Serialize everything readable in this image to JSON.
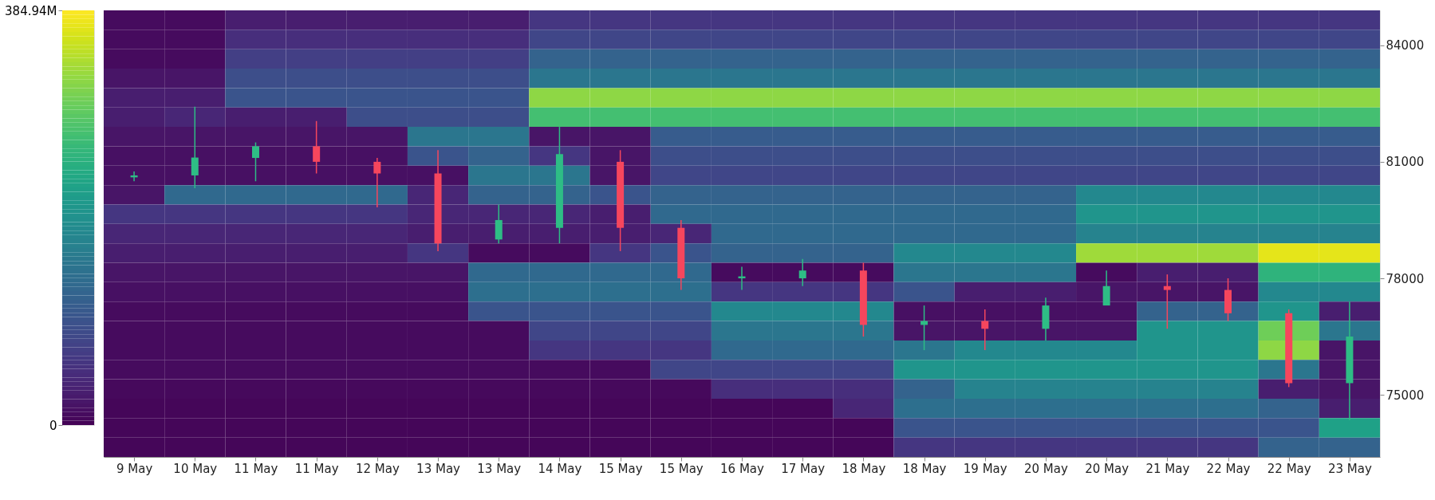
{
  "chart_data": {
    "type": "heatmap",
    "categories": [
      "9 May",
      "10 May",
      "11 May",
      "11 May",
      "12 May",
      "13 May",
      "13 May",
      "14 May",
      "15 May",
      "15 May",
      "16 May",
      "17 May",
      "18 May",
      "18 May",
      "19 May",
      "20 May",
      "20 May",
      "21 May",
      "22 May",
      "22 May",
      "23 May"
    ],
    "series": [
      {
        "type": "candlestick",
        "ohlc": [
          [
            80600,
            80750,
            80500,
            80650
          ],
          [
            80650,
            82420,
            80320,
            81110
          ],
          [
            81100,
            81500,
            80500,
            81400
          ],
          [
            81400,
            82050,
            80700,
            81000
          ],
          [
            81000,
            81100,
            79830,
            80700
          ],
          [
            80700,
            81300,
            78700,
            78900
          ],
          [
            79000,
            79900,
            78900,
            79500
          ],
          [
            79300,
            81900,
            78900,
            81200
          ],
          [
            81000,
            81300,
            78700,
            79300
          ],
          [
            79300,
            79500,
            77700,
            78000
          ],
          [
            78000,
            78300,
            77700,
            78050
          ],
          [
            78000,
            78500,
            77800,
            78200
          ],
          [
            78200,
            78400,
            76500,
            76800
          ],
          [
            76800,
            77300,
            76150,
            76900
          ],
          [
            76900,
            77200,
            76150,
            76700
          ],
          [
            76700,
            77500,
            76400,
            77300
          ],
          [
            77300,
            78200,
            77300,
            77800
          ],
          [
            77800,
            78100,
            76700,
            77700
          ],
          [
            77700,
            78000,
            76900,
            77100
          ],
          [
            77100,
            77200,
            75200,
            75300
          ],
          [
            75300,
            77400,
            74350,
            76500
          ]
        ],
        "colors": [
          "#2ebd85",
          "#2ebd85",
          "#2ebd85",
          "#f6465d",
          "#f6465d",
          "#f6465d",
          "#2ebd85",
          "#2ebd85",
          "#f6465d",
          "#f6465d",
          "#2ebd85",
          "#2ebd85",
          "#f6465d",
          "#2ebd85",
          "#f6465d",
          "#2ebd85",
          "#2ebd85",
          "#f6465d",
          "#f6465d",
          "#f6465d",
          "#2ebd85"
        ]
      }
    ],
    "ylim": [
      73400,
      84900
    ],
    "yticks": [
      75000,
      78000,
      81000,
      84000
    ],
    "clim": [
      0,
      384.94
    ],
    "cticks": [
      {
        "value": 384.94,
        "label": "384.94M"
      },
      0
    ],
    "cells": [
      [
        10,
        10,
        30,
        30,
        30,
        30,
        30,
        60,
        60,
        60,
        60,
        60,
        60,
        60,
        60,
        60,
        60,
        60,
        60,
        60,
        60
      ],
      [
        10,
        10,
        50,
        50,
        50,
        50,
        50,
        80,
        80,
        80,
        80,
        80,
        80,
        80,
        80,
        80,
        80,
        80,
        80,
        80,
        80
      ],
      [
        10,
        10,
        70,
        70,
        70,
        70,
        70,
        120,
        120,
        120,
        120,
        120,
        120,
        120,
        120,
        120,
        120,
        120,
        120,
        120,
        120
      ],
      [
        20,
        20,
        90,
        90,
        90,
        90,
        90,
        150,
        150,
        150,
        150,
        150,
        150,
        150,
        150,
        150,
        150,
        150,
        150,
        150,
        150
      ],
      [
        30,
        30,
        100,
        100,
        100,
        100,
        100,
        320,
        320,
        320,
        320,
        320,
        320,
        320,
        320,
        320,
        320,
        320,
        320,
        320,
        320
      ],
      [
        30,
        40,
        30,
        30,
        90,
        90,
        90,
        270,
        270,
        270,
        270,
        270,
        270,
        270,
        270,
        270,
        270,
        270,
        270,
        270,
        270
      ],
      [
        20,
        20,
        20,
        20,
        20,
        150,
        150,
        20,
        20,
        110,
        110,
        110,
        110,
        110,
        110,
        110,
        110,
        110,
        110,
        110,
        110
      ],
      [
        15,
        15,
        15,
        15,
        15,
        100,
        120,
        60,
        20,
        90,
        90,
        90,
        90,
        90,
        90,
        90,
        90,
        90,
        90,
        90,
        90
      ],
      [
        15,
        15,
        15,
        15,
        15,
        15,
        150,
        150,
        20,
        80,
        80,
        80,
        80,
        80,
        80,
        80,
        80,
        80,
        80,
        80,
        80
      ],
      [
        20,
        130,
        130,
        130,
        130,
        40,
        120,
        120,
        100,
        120,
        120,
        120,
        120,
        120,
        120,
        120,
        180,
        180,
        180,
        180,
        180
      ],
      [
        60,
        60,
        60,
        60,
        60,
        40,
        40,
        40,
        30,
        130,
        130,
        130,
        130,
        130,
        130,
        130,
        200,
        200,
        200,
        200,
        200
      ],
      [
        40,
        40,
        40,
        40,
        40,
        30,
        30,
        30,
        30,
        40,
        130,
        130,
        130,
        130,
        130,
        130,
        170,
        170,
        170,
        170,
        170
      ],
      [
        30,
        30,
        30,
        30,
        30,
        60,
        10,
        10,
        60,
        100,
        120,
        120,
        120,
        180,
        180,
        180,
        330,
        330,
        330,
        370,
        370
      ],
      [
        20,
        20,
        20,
        20,
        20,
        20,
        130,
        130,
        130,
        130,
        10,
        10,
        10,
        150,
        150,
        150,
        10,
        30,
        30,
        250,
        250
      ],
      [
        15,
        15,
        15,
        15,
        15,
        15,
        140,
        140,
        140,
        140,
        60,
        60,
        60,
        100,
        30,
        30,
        20,
        20,
        20,
        180,
        180
      ],
      [
        10,
        10,
        10,
        10,
        10,
        10,
        100,
        100,
        100,
        100,
        180,
        180,
        180,
        15,
        15,
        15,
        15,
        120,
        120,
        200,
        30
      ],
      [
        10,
        10,
        10,
        10,
        10,
        10,
        10,
        80,
        80,
        80,
        150,
        150,
        150,
        20,
        20,
        20,
        20,
        200,
        200,
        300,
        150
      ],
      [
        10,
        10,
        10,
        10,
        10,
        10,
        10,
        60,
        60,
        60,
        130,
        130,
        130,
        150,
        180,
        180,
        180,
        200,
        200,
        320,
        20
      ],
      [
        10,
        10,
        10,
        10,
        10,
        10,
        10,
        10,
        10,
        80,
        80,
        80,
        80,
        200,
        200,
        200,
        200,
        200,
        200,
        150,
        20
      ],
      [
        8,
        8,
        8,
        8,
        8,
        8,
        8,
        8,
        8,
        8,
        50,
        50,
        50,
        120,
        170,
        170,
        170,
        170,
        170,
        30,
        20
      ],
      [
        5,
        5,
        5,
        5,
        5,
        5,
        5,
        5,
        5,
        5,
        5,
        5,
        40,
        140,
        140,
        140,
        140,
        140,
        140,
        120,
        30
      ],
      [
        5,
        5,
        5,
        5,
        5,
        5,
        5,
        5,
        5,
        5,
        5,
        5,
        5,
        100,
        100,
        100,
        100,
        100,
        100,
        100,
        220
      ],
      [
        5,
        5,
        5,
        5,
        5,
        5,
        5,
        5,
        5,
        5,
        5,
        5,
        5,
        60,
        60,
        60,
        60,
        60,
        60,
        120,
        120
      ]
    ]
  }
}
